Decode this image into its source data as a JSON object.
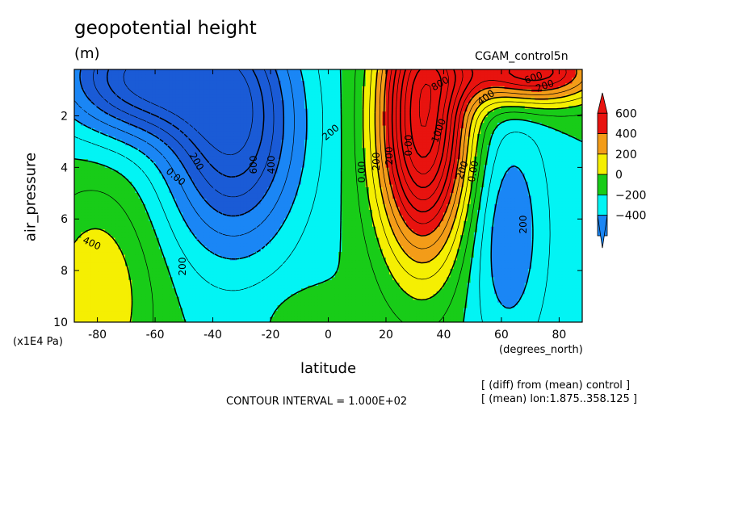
{
  "chart_data": {
    "type": "contour",
    "title": "geopotential height",
    "units": "(m)",
    "dataset_label": "CGAM_control5n",
    "xlabel": "latitude",
    "x_units": "(degrees_north)",
    "ylabel": "air_pressure",
    "y_units": "(x1E4 Pa)",
    "xlim": [
      -88,
      88
    ],
    "ylim": [
      0.2,
      10
    ],
    "y_inverted": true,
    "x_ticks": [
      "-80",
      "-60",
      "-40",
      "-20",
      "0",
      "20",
      "40",
      "60",
      "80"
    ],
    "y_ticks": [
      "2",
      "4",
      "6",
      "8",
      "10"
    ],
    "contour_interval_text": "CONTOUR INTERVAL = 1.000E+02",
    "notes": [
      "[ (diff) from (mean) control ]",
      "[ (mean) lon:1.875..358.125 ]"
    ],
    "colorbar": {
      "labels": [
        "600",
        "400",
        "200",
        "0",
        "−200",
        "−400"
      ],
      "colors": [
        "#e8130f",
        "#f39c18",
        "#f5ef02",
        "#18cc18",
        "#02f4f4",
        "#1a86f5"
      ]
    },
    "contour_labels": [
      "800",
      "600",
      "400",
      "1000",
      "200",
      "0.00",
      "200",
      "600",
      "400",
      "200",
      "200",
      "0.00",
      "200",
      "0.00",
      "200",
      "400",
      "200",
      "0.00",
      "200"
    ],
    "features": [
      {
        "type": "min",
        "lat": -33,
        "pressure": 2.5,
        "value": -700
      },
      {
        "type": "min",
        "lat": -65,
        "pressure": 0.5,
        "value": -700
      },
      {
        "type": "max",
        "lat": 33,
        "pressure": 2.2,
        "value": 1300
      },
      {
        "type": "max",
        "lat": 70,
        "pressure": 0.3,
        "value": 900
      },
      {
        "type": "min",
        "lat": 62,
        "pressure": 6.5,
        "value": -300
      },
      {
        "type": "max",
        "lat": -80,
        "pressure": 9,
        "value": 300
      },
      {
        "type": "max",
        "lat": -7,
        "pressure": 9.8,
        "value": 80
      }
    ]
  }
}
